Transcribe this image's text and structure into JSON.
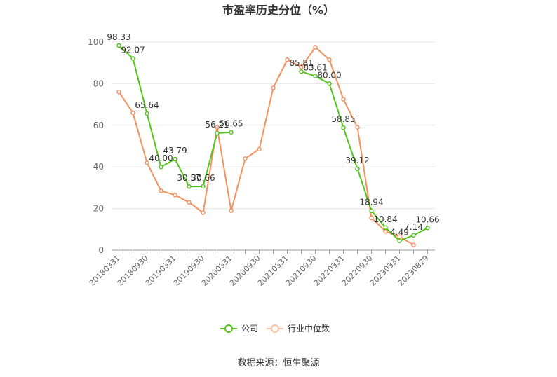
{
  "chart_data": {
    "type": "line",
    "title": "市盈率历史分位（%）",
    "source": "数据来源：恒生聚源",
    "ylim": [
      0,
      100
    ],
    "yticks": [
      0,
      20,
      40,
      60,
      80,
      100
    ],
    "grid": true,
    "legend_placement": "bottom-center",
    "x": [
      "20180331",
      "20180630",
      "20180930",
      "20181231",
      "20190331",
      "20190630",
      "20190930",
      "20191231",
      "20200331",
      "20200630",
      "20200930",
      "20201231",
      "20210331",
      "20210630",
      "20210930",
      "20211231",
      "20220331",
      "20220630",
      "20220930",
      "20221231",
      "20230331",
      "20230630",
      "20230829"
    ],
    "x_tick_labels": [
      "20180331",
      "20180930",
      "20190331",
      "20190930",
      "20200331",
      "20200930",
      "20210331",
      "20210930",
      "20220331",
      "20220930",
      "20230331",
      "20230829"
    ],
    "series": [
      {
        "name": "公司",
        "color": "#52c41a",
        "values": [
          98.33,
          92.07,
          65.64,
          40.0,
          43.79,
          30.57,
          30.66,
          56.21,
          56.65,
          null,
          null,
          null,
          null,
          85.81,
          83.61,
          80.0,
          58.85,
          39.12,
          18.94,
          10.84,
          4.49,
          7.14,
          10.66
        ],
        "labels": [
          "98.33",
          "92.07",
          "65.64",
          "40.00",
          "43.79",
          "30.57",
          "30.66",
          "56.21",
          "56.65",
          null,
          null,
          null,
          null,
          "85.81",
          "83.61",
          "80.00",
          "58.85",
          "39.12",
          "18.94",
          "10.84",
          "4.49",
          "7.14",
          "10.66"
        ]
      },
      {
        "name": "行业中位数",
        "color": "#f4915e",
        "values": [
          76,
          66,
          42,
          28.5,
          26.5,
          23,
          18,
          59,
          19,
          44,
          48.5,
          78,
          91.5,
          88,
          97.5,
          91.5,
          72.5,
          59,
          15.5,
          9,
          6.5,
          2.5,
          null
        ]
      }
    ]
  }
}
